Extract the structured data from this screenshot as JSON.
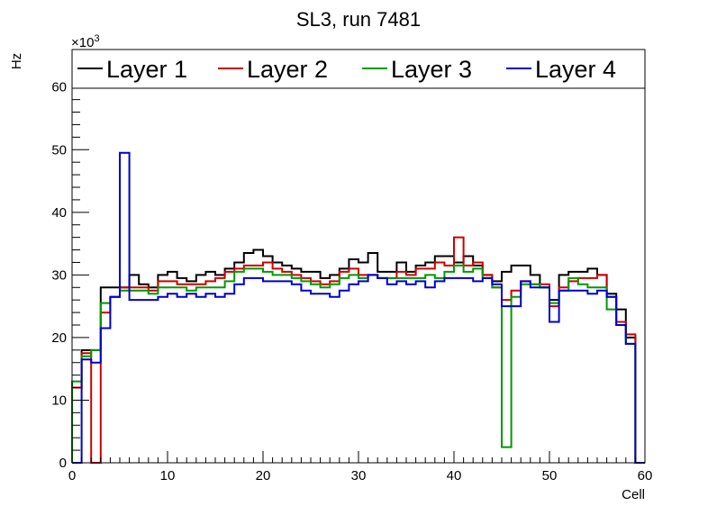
{
  "chart_data": {
    "type": "step-histogram",
    "title": "SL3, run 7481",
    "xlabel": "Cell",
    "ylabel": "Hz",
    "exponent_base": "×10",
    "exponent_power": "3",
    "xlim": [
      0,
      60
    ],
    "ylim": [
      0,
      66
    ],
    "xticks": [
      "0",
      "10",
      "20",
      "30",
      "40",
      "50",
      "60"
    ],
    "yticks": [
      "0",
      "10",
      "20",
      "30",
      "40",
      "50",
      "60"
    ],
    "legend_position": "top",
    "series": [
      {
        "name": "Layer 1",
        "color": "#000000",
        "values": [
          12,
          18,
          18,
          28,
          28,
          28,
          30,
          28.5,
          28,
          30,
          30.5,
          29.5,
          29,
          30,
          30.5,
          30,
          31,
          32,
          33.5,
          34,
          33,
          32,
          31.5,
          31,
          30.5,
          30.5,
          29.5,
          30,
          31,
          32.5,
          32,
          33.5,
          30.5,
          30.5,
          32,
          30.5,
          31.5,
          32,
          33,
          33,
          32,
          33,
          31.5,
          30,
          29,
          30.5,
          31.5,
          31.5,
          30,
          28,
          26,
          30,
          30.5,
          30.5,
          31,
          30,
          27,
          24.5,
          20,
          0
        ]
      },
      {
        "name": "Layer 2",
        "color": "#cc0000",
        "values": [
          12,
          17.5,
          0,
          24,
          26.5,
          28,
          28,
          28,
          27.5,
          29,
          29,
          28.5,
          28.5,
          28.5,
          29,
          29.5,
          30.5,
          31,
          31.5,
          31.5,
          32,
          31,
          30.5,
          30,
          29.5,
          29,
          28.5,
          29,
          30.5,
          31,
          30,
          30,
          29.5,
          29.5,
          30.5,
          30,
          31,
          31,
          32,
          31.5,
          36,
          31.5,
          32,
          30,
          28,
          26,
          27.5,
          29,
          28.5,
          28.5,
          25,
          28,
          29,
          29.5,
          29.5,
          30,
          26.5,
          22.5,
          20.5,
          0
        ]
      },
      {
        "name": "Layer 3",
        "color": "#009900",
        "values": [
          13,
          17,
          18,
          25.5,
          26.5,
          27.5,
          27.5,
          27.5,
          27,
          28,
          28,
          28,
          27.5,
          28,
          28,
          28,
          29,
          30.5,
          31,
          31,
          30.5,
          30,
          30,
          29.5,
          29,
          28.5,
          28,
          28.5,
          29.5,
          30,
          29.5,
          30,
          29.5,
          29.5,
          29.5,
          29.5,
          29.5,
          30,
          29.5,
          30.5,
          31.5,
          30.5,
          31,
          29.5,
          28,
          2.5,
          26.5,
          28.5,
          28.5,
          28,
          25.5,
          27.5,
          29.5,
          28.5,
          28,
          28,
          24.5,
          22,
          19,
          0
        ]
      },
      {
        "name": "Layer 4",
        "color": "#0000cc",
        "values": [
          0,
          16.5,
          16,
          21.5,
          26.5,
          49.5,
          26,
          26,
          26,
          26.5,
          27,
          26.5,
          27,
          26.5,
          27,
          26.5,
          27,
          28.5,
          29.5,
          29.5,
          29,
          29,
          29,
          28.5,
          27.5,
          27,
          27,
          26.5,
          27.5,
          28.5,
          29,
          30,
          29.5,
          28.5,
          29,
          28.5,
          29,
          28,
          29,
          29.5,
          29.5,
          29.5,
          29,
          29.5,
          28.5,
          25,
          25,
          29,
          28,
          28,
          22.5,
          27.5,
          27.5,
          27.5,
          27,
          27.5,
          26.5,
          22,
          19,
          0
        ]
      }
    ]
  }
}
